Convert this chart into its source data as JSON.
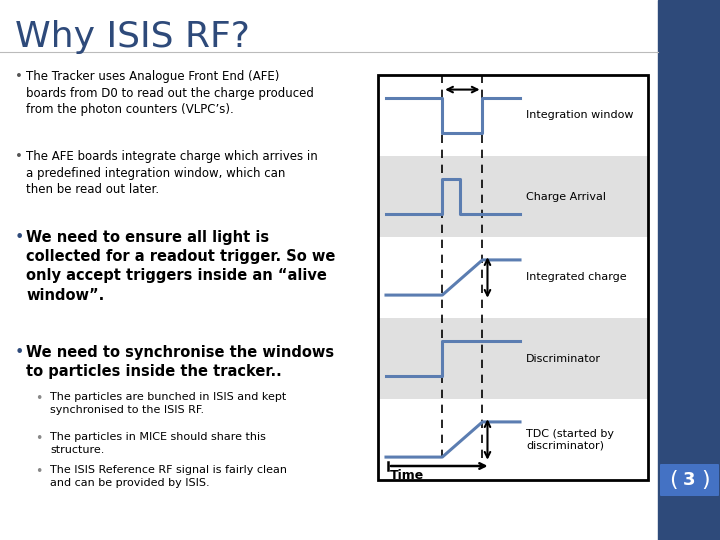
{
  "title": "Why ISIS RF?",
  "title_color": "#2E4A7A",
  "title_fontsize": 26,
  "bg_color": "#FFFFFF",
  "right_bar_color": "#2E4A7A",
  "bullet_color": "#2E4A7A",
  "bullet_points_col1": [
    {
      "text": "The Tracker uses Analogue Front End (AFE) boards from D0 to read out the charge produced from the photon counters (VLPC’s).",
      "bold": false,
      "fontsize": 8.5,
      "indent": 0
    },
    {
      "text": "The AFE boards integrate charge which arrives in a predefined integration window, which can then be read out later.",
      "bold": false,
      "fontsize": 8.5,
      "indent": 0
    },
    {
      "text": "We need to ensure all light is collected for a readout trigger. So we only accept triggers inside an “alive window”.",
      "bold": true,
      "fontsize": 10,
      "indent": 0
    },
    {
      "text": "We need to synchronise the windows to particles inside the tracker..",
      "bold": true,
      "fontsize": 10,
      "indent": 0
    },
    {
      "text": "The particles are bunched in ISIS and kept synchronised to the ISIS RF.",
      "bold": false,
      "fontsize": 8,
      "indent": 1
    },
    {
      "text": "The particles in MICE should share this structure.",
      "bold": false,
      "fontsize": 8,
      "indent": 1
    },
    {
      "text": "The ISIS Reference RF signal is fairly clean and can be provided by ISIS.",
      "bold": false,
      "fontsize": 8,
      "indent": 1
    }
  ],
  "diagram_labels": [
    "Integration window",
    "Charge Arrival",
    "Integrated charge",
    "Discriminator",
    "TDC (started by\ndiscriminator)"
  ],
  "diagram_bg_colors": [
    "#FFFFFF",
    "#E0E0E0",
    "#FFFFFF",
    "#E0E0E0",
    "#FFFFFF"
  ],
  "signal_color": "#5B7DB1",
  "page_number": "3",
  "page_badge_color": "#4472C4"
}
